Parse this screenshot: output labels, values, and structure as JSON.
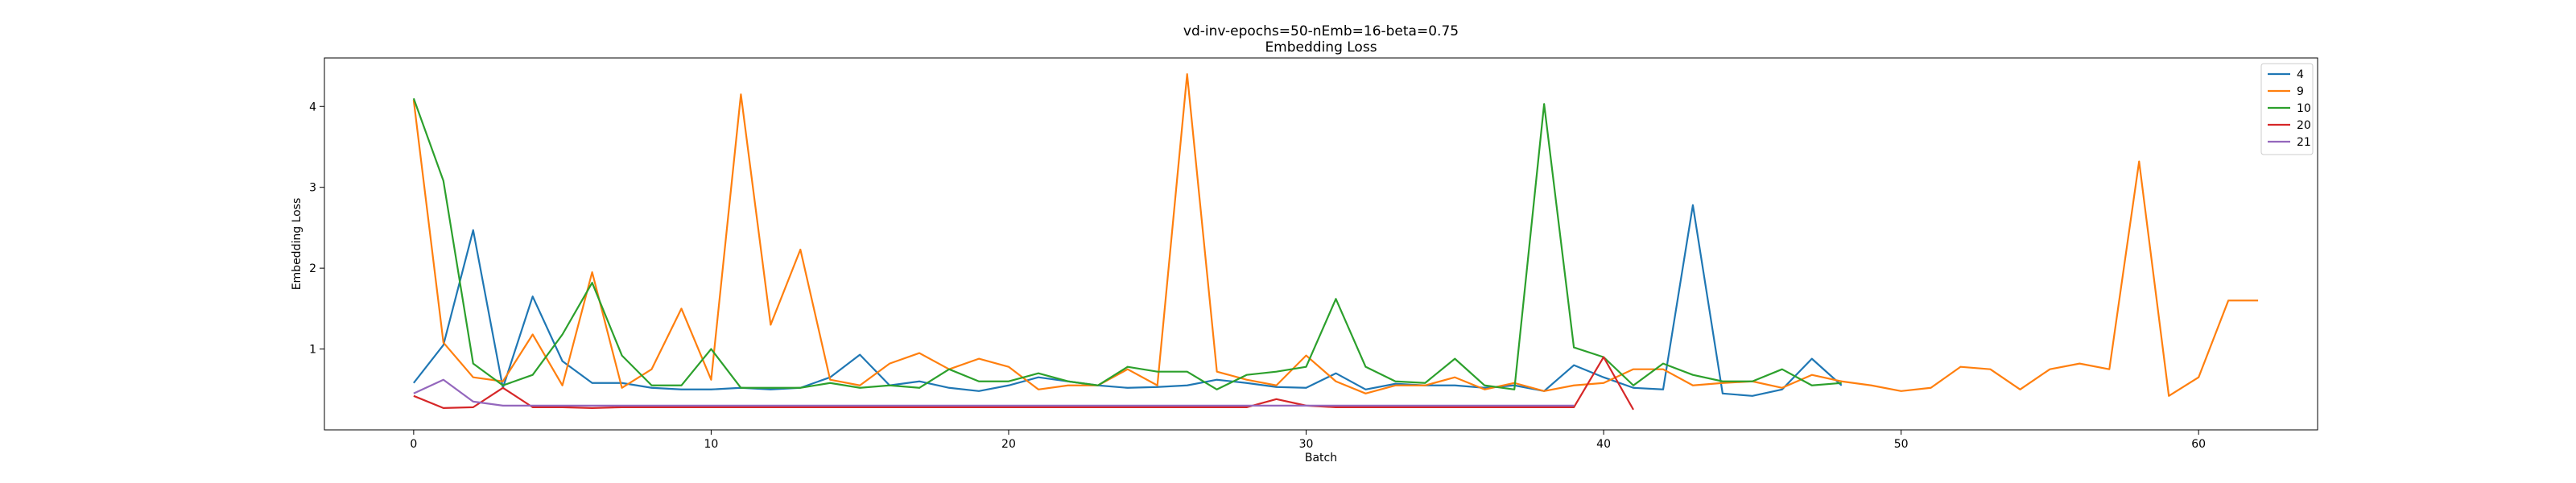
{
  "chart_data": {
    "type": "line",
    "title": "vd-inv-epochs=50-nEmb=16-beta=0.75",
    "subtitle": "Embedding Loss",
    "xlabel": "Batch",
    "ylabel": "Embedding Loss",
    "xlim": [
      -3,
      64
    ],
    "ylim": [
      0,
      4.6
    ],
    "xticks": [
      0,
      10,
      20,
      30,
      40,
      50,
      60
    ],
    "yticks": [
      1,
      2,
      3,
      4
    ],
    "grid": false,
    "legend_position": "top-right",
    "series": [
      {
        "name": "4",
        "color": "#1f77b4",
        "values": [
          0.58,
          1.05,
          2.47,
          0.52,
          1.65,
          0.85,
          0.58,
          0.58,
          0.52,
          0.5,
          0.5,
          0.52,
          0.5,
          0.52,
          0.65,
          0.93,
          0.55,
          0.6,
          0.52,
          0.48,
          0.55,
          0.65,
          0.6,
          0.55,
          0.52,
          0.53,
          0.55,
          0.62,
          0.58,
          0.53,
          0.52,
          0.7,
          0.5,
          0.57,
          0.55,
          0.55,
          0.52,
          0.55,
          0.48,
          0.8,
          0.65,
          0.52,
          0.5,
          2.78,
          0.45,
          0.42,
          0.5,
          0.88,
          0.55
        ]
      },
      {
        "name": "9",
        "color": "#ff7f0e",
        "values": [
          4.08,
          1.08,
          0.65,
          0.6,
          1.18,
          0.55,
          1.95,
          0.52,
          0.75,
          1.5,
          0.62,
          4.15,
          1.3,
          2.23,
          0.62,
          0.55,
          0.82,
          0.95,
          0.75,
          0.88,
          0.78,
          0.5,
          0.55,
          0.55,
          0.75,
          0.55,
          4.4,
          0.72,
          0.62,
          0.55,
          0.92,
          0.6,
          0.45,
          0.55,
          0.55,
          0.65,
          0.5,
          0.58,
          0.48,
          0.55,
          0.58,
          0.75,
          0.75,
          0.55,
          0.58,
          0.6,
          0.52,
          0.68,
          0.6,
          0.55,
          0.48,
          0.52,
          0.78,
          0.75,
          0.5,
          0.75,
          0.82,
          0.75,
          3.32,
          0.42,
          0.65,
          1.6,
          1.6
        ]
      },
      {
        "name": "10",
        "color": "#2ca02c",
        "values": [
          4.1,
          3.08,
          0.82,
          0.55,
          0.68,
          1.18,
          1.82,
          0.92,
          0.55,
          0.55,
          1.0,
          0.52,
          0.52,
          0.52,
          0.58,
          0.52,
          0.55,
          0.52,
          0.75,
          0.6,
          0.6,
          0.7,
          0.6,
          0.55,
          0.78,
          0.72,
          0.72,
          0.5,
          0.68,
          0.72,
          0.78,
          1.62,
          0.78,
          0.6,
          0.58,
          0.88,
          0.55,
          0.5,
          4.03,
          1.02,
          0.9,
          0.55,
          0.82,
          0.68,
          0.6,
          0.6,
          0.75,
          0.55,
          0.58
        ]
      },
      {
        "name": "20",
        "color": "#d62728",
        "values": [
          0.42,
          0.27,
          0.28,
          0.52,
          0.28,
          0.28,
          0.27,
          0.28,
          0.28,
          0.28,
          0.28,
          0.28,
          0.28,
          0.28,
          0.28,
          0.28,
          0.28,
          0.28,
          0.28,
          0.28,
          0.28,
          0.28,
          0.28,
          0.28,
          0.28,
          0.28,
          0.28,
          0.28,
          0.28,
          0.38,
          0.3,
          0.28,
          0.28,
          0.28,
          0.28,
          0.28,
          0.28,
          0.28,
          0.28,
          0.28,
          0.9,
          0.25
        ]
      },
      {
        "name": "21",
        "color": "#9467bd",
        "values": [
          0.45,
          0.62,
          0.35,
          0.3,
          0.3,
          0.3,
          0.3,
          0.3,
          0.3,
          0.3,
          0.3,
          0.3,
          0.3,
          0.3,
          0.3,
          0.3,
          0.3,
          0.3,
          0.3,
          0.3,
          0.3,
          0.3,
          0.3,
          0.3,
          0.3,
          0.3,
          0.3,
          0.3,
          0.3,
          0.3,
          0.3,
          0.3,
          0.3,
          0.3,
          0.3,
          0.3,
          0.3,
          0.3,
          0.3,
          0.3
        ]
      }
    ]
  }
}
